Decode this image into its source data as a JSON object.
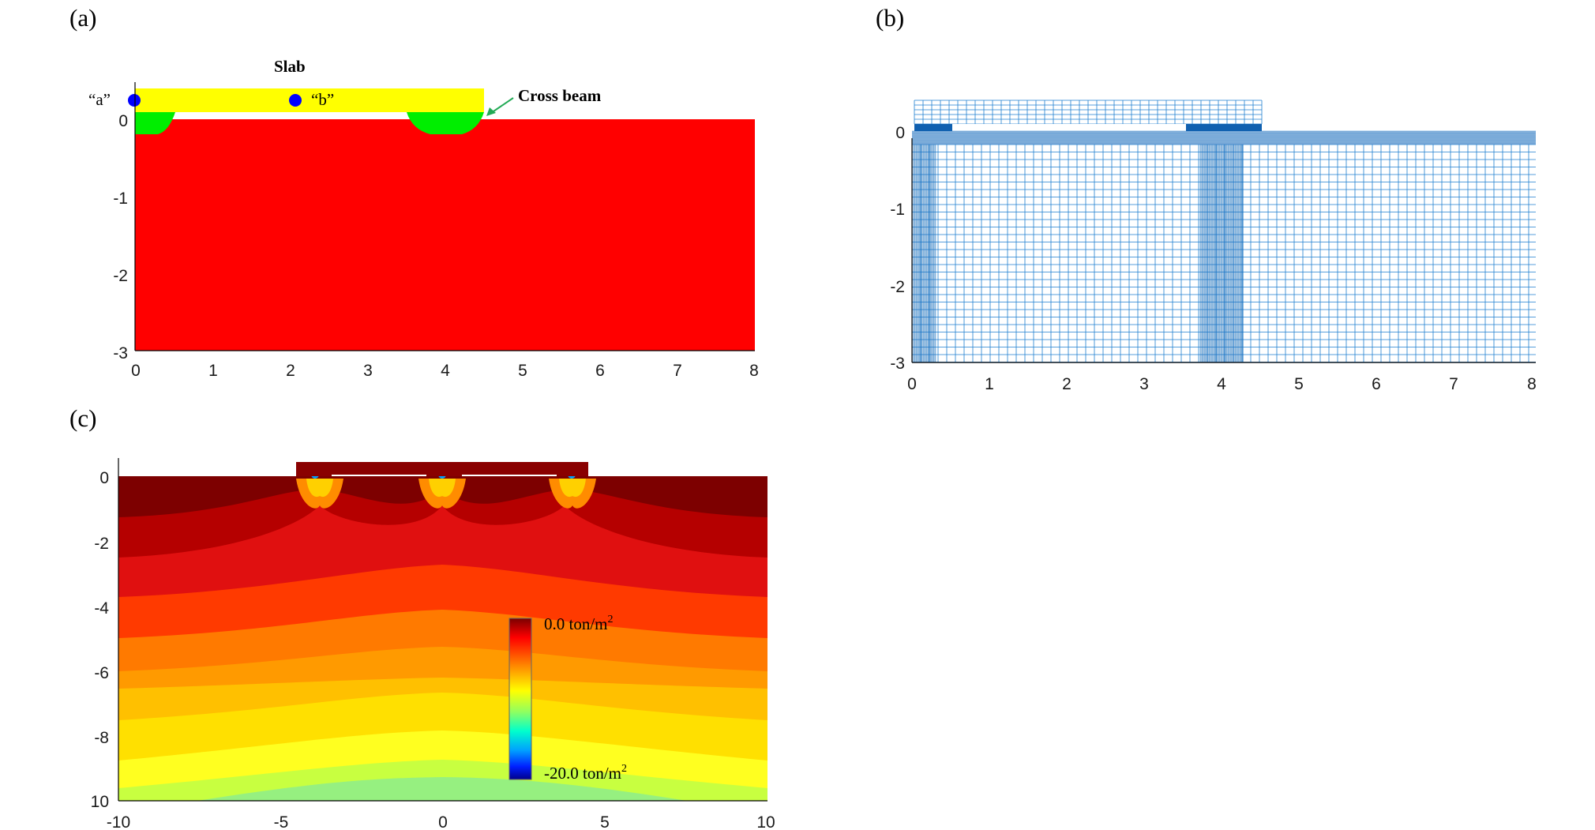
{
  "panels": {
    "a": {
      "label": "(a)",
      "slab_label": "Slab",
      "point_a_label": "“a”",
      "point_b_label": "“b”",
      "cross_beam_label": "Cross beam",
      "x_ticks": [
        "0",
        "1",
        "2",
        "3",
        "4",
        "5",
        "6",
        "7",
        "8"
      ],
      "y_ticks": [
        "0",
        "-1",
        "-2",
        "-3"
      ],
      "colors": {
        "slab": "#ffff00",
        "beam": "#00ff00",
        "soil": "#ff0000",
        "points": "#0000ff",
        "arrow": "#22aa55"
      }
    },
    "b": {
      "label": "(b)",
      "x_ticks": [
        "0",
        "1",
        "2",
        "3",
        "4",
        "5",
        "6",
        "7",
        "8"
      ],
      "y_ticks": [
        "0",
        "-1",
        "-2",
        "-3"
      ],
      "colors": {
        "mesh": "#1f7fd0",
        "dense": "#1060b0"
      }
    },
    "c": {
      "label": "(c)",
      "x_ticks": [
        "-10",
        "-5",
        "0",
        "5",
        "10"
      ],
      "y_ticks": [
        "0",
        "-2",
        "-4",
        "-6",
        "-8",
        "10"
      ],
      "colorbar_max_label": "0.0 ton/m",
      "colorbar_min_label": "-20.0 ton/m",
      "colorbar_unit_power": "2",
      "band_colors": [
        "#7d0000",
        "#b50000",
        "#e01010",
        "#ff3a00",
        "#ff7a00",
        "#ff9a00",
        "#ffc000",
        "#ffe000",
        "#ffff20",
        "#d7ff30",
        "#b8ff50",
        "#96f080"
      ]
    }
  }
}
